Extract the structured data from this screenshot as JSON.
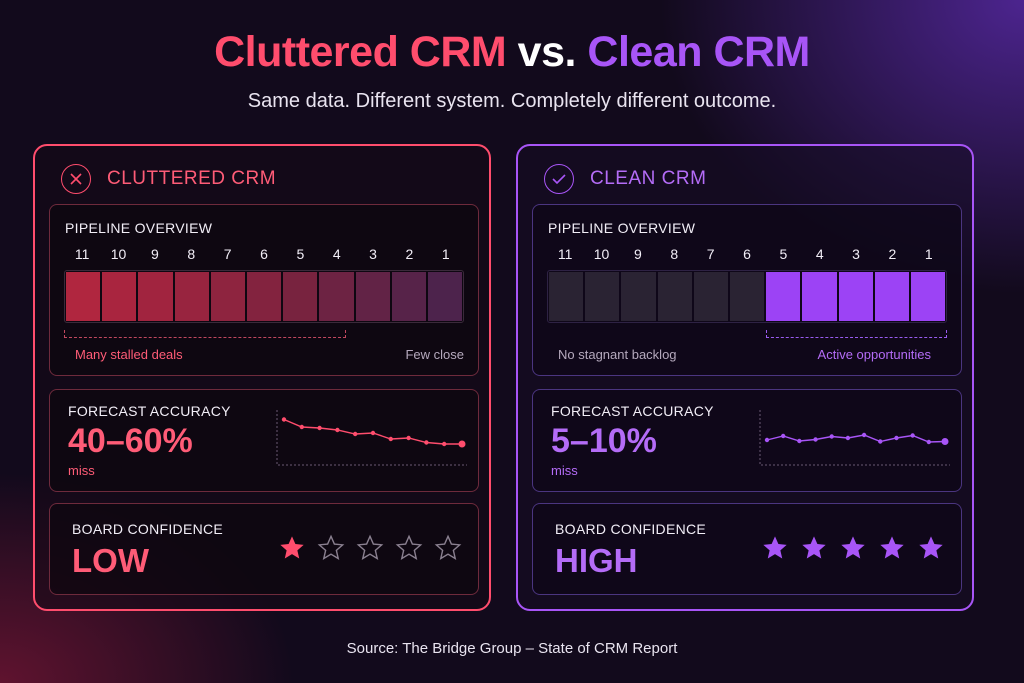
{
  "title": {
    "part1": "Cluttered CRM",
    "part2": "vs.",
    "part3": "Clean CRM"
  },
  "subtitle": "Same data. Different system. Completely different outcome.",
  "panels": {
    "cluttered": {
      "name": "CLUTTERED CRM",
      "icon": "x-icon",
      "pipeline": {
        "label": "PIPELINE OVERVIEW",
        "stages": [
          "11",
          "10",
          "9",
          "8",
          "7",
          "6",
          "5",
          "4",
          "3",
          "2",
          "1"
        ],
        "colors": [
          "#b0263f",
          "#a9253f",
          "#a1243f",
          "#98243f",
          "#8e243f",
          "#83233f",
          "#78233f",
          "#6d2343",
          "#622346",
          "#572349",
          "#4d234c"
        ],
        "note_left": "Many stalled deals",
        "note_right": "Few close",
        "note_left_color": "#ff5c77",
        "note_right_color": "#b5a9bd"
      },
      "forecast": {
        "label": "FORECAST ACCURACY",
        "value": "40–60%",
        "unit": "miss",
        "trend": [
          8.5,
          7.0,
          6.8,
          6.4,
          5.6,
          5.8,
          4.6,
          4.8,
          3.9,
          3.6,
          3.6
        ],
        "color": "#ff4d6d"
      },
      "confidence": {
        "label": "BOARD CONFIDENCE",
        "value": "LOW",
        "rating": 1,
        "max": 5,
        "color": "#ff4d6d"
      }
    },
    "clean": {
      "name": "CLEAN CRM",
      "icon": "check-icon",
      "pipeline": {
        "label": "PIPELINE OVERVIEW",
        "stages": [
          "11",
          "10",
          "9",
          "8",
          "7",
          "6",
          "5",
          "4",
          "3",
          "2",
          "1"
        ],
        "colors": [
          "#2a2333",
          "#2a2333",
          "#2a2333",
          "#2a2333",
          "#2a2333",
          "#2a2333",
          "#9c43f5",
          "#9c43f5",
          "#9c43f5",
          "#9c43f5",
          "#9c43f5"
        ],
        "note_left": "No stagnant backlog",
        "note_right": "Active opportunities",
        "note_left_color": "#b5a9bd",
        "note_right_color": "#b46cf7"
      },
      "forecast": {
        "label": "FORECAST ACCURACY",
        "value": "5–10%",
        "unit": "miss",
        "trend": [
          4.4,
          5.2,
          4.2,
          4.5,
          5.1,
          4.8,
          5.4,
          4.1,
          4.8,
          5.3,
          4.0,
          4.1
        ],
        "color": "#a855f7"
      },
      "confidence": {
        "label": "BOARD CONFIDENCE",
        "value": "HIGH",
        "rating": 5,
        "max": 5,
        "color": "#a855f7"
      }
    }
  },
  "source": "Source: The Bridge Group – State of CRM Report"
}
